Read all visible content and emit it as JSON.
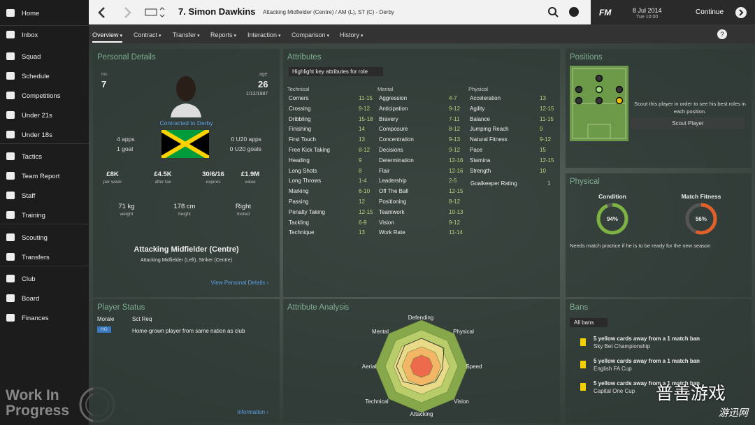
{
  "sidebar": {
    "items": [
      "Home",
      "Inbox",
      "Squad",
      "Schedule",
      "Competitions",
      "Under 21s",
      "Under 18s",
      "Tactics",
      "Team Report",
      "Staff",
      "Training",
      "Scouting",
      "Transfers",
      "Club",
      "Board",
      "Finances"
    ],
    "watermark": "Work In Progress"
  },
  "header": {
    "title": "7. Simon Dawkins",
    "subtitle": "Attacking Midfielder (Centre) / AM (L), ST (C) - Derby",
    "logo": "FM",
    "date": "8 Jul 2014",
    "time": "Tue 10:00",
    "continue": "Continue"
  },
  "tabs": [
    "Overview",
    "Contract",
    "Transfer",
    "Reports",
    "Interaction",
    "Comparison",
    "History"
  ],
  "personal": {
    "title": "Personal Details",
    "no_label": "no.",
    "no": "7",
    "age_label": "age",
    "age": "26",
    "dob": "1/12/1987",
    "contract": "Contracted to Derby",
    "stats": [
      {
        "value": "4 apps",
        "pos": "l"
      },
      {
        "value": "1 goal",
        "pos": "l"
      },
      {
        "value": "0 U20 apps",
        "pos": "r"
      },
      {
        "value": "0 U20 goals",
        "pos": "r"
      }
    ],
    "facts": [
      {
        "value": "£8K",
        "label": "per week"
      },
      {
        "value": "£4.5K",
        "label": "after tax"
      },
      {
        "value": "30/6/16",
        "label": "expires"
      },
      {
        "value": "£1.9M",
        "label": "value"
      }
    ],
    "body": [
      {
        "value": "71 kg",
        "label": "weight"
      },
      {
        "value": "178 cm",
        "label": "height"
      },
      {
        "value": "Right",
        "label": "footed"
      }
    ],
    "position": "Attacking Midfielder (Centre)",
    "other_positions": "Attacking Midfielder (Left), Striker (Centre)",
    "link": "View Personal Details ›"
  },
  "attributes": {
    "title": "Attributes",
    "highlight": "Highlight key attributes for role",
    "groups": [
      {
        "name": "Technical",
        "rows": [
          [
            "Corners",
            "11-15"
          ],
          [
            "Crossing",
            "9-12"
          ],
          [
            "Dribbling",
            "15-18"
          ],
          [
            "Finishing",
            "14"
          ],
          [
            "First Touch",
            "13"
          ],
          [
            "Free Kick Taking",
            "8-12"
          ],
          [
            "Heading",
            "9"
          ],
          [
            "Long Shots",
            "8"
          ],
          [
            "Long Throws",
            "1-4"
          ],
          [
            "Marking",
            "6-10"
          ],
          [
            "Passing",
            "12"
          ],
          [
            "Penalty Taking",
            "12-15"
          ],
          [
            "Tackling",
            "6-9"
          ],
          [
            "Technique",
            "13"
          ]
        ]
      },
      {
        "name": "Mental",
        "rows": [
          [
            "Aggression",
            "4-7"
          ],
          [
            "Anticipation",
            "9-12"
          ],
          [
            "Bravery",
            "7-11"
          ],
          [
            "Composure",
            "8-12"
          ],
          [
            "Concentration",
            "9-13"
          ],
          [
            "Decisions",
            "9-12"
          ],
          [
            "Determination",
            "12-16"
          ],
          [
            "Flair",
            "12-16"
          ],
          [
            "Leadership",
            "2-5"
          ],
          [
            "Off The Ball",
            "12-15"
          ],
          [
            "Positioning",
            "8-12"
          ],
          [
            "Teamwork",
            "10-13"
          ],
          [
            "Vision",
            "9-12"
          ],
          [
            "Work Rate",
            "11-14"
          ]
        ]
      },
      {
        "name": "Physical",
        "rows": [
          [
            "Acceleration",
            "13"
          ],
          [
            "Agility",
            "12-15"
          ],
          [
            "Balance",
            "11-15"
          ],
          [
            "Jumping Reach",
            "9"
          ],
          [
            "Natural Fitness",
            "9-12"
          ],
          [
            "Pace",
            "15"
          ],
          [
            "Stamina",
            "12-15"
          ],
          [
            "Strength",
            "10"
          ]
        ]
      }
    ],
    "gk_label": "Goalkeeper Rating",
    "gk_value": "1"
  },
  "positions": {
    "title": "Positions",
    "note": "Scout this player in order to see his best roles in each position.",
    "button": "Scout Player"
  },
  "physical": {
    "title": "Physical",
    "gauges": [
      {
        "name": "Condition",
        "value": 94,
        "label": "94%",
        "color": "#7cb342"
      },
      {
        "name": "Match Fitness",
        "value": 56,
        "label": "56%",
        "color": "#e0602a"
      }
    ],
    "note": "Needs match practice if he is to be ready for the new season"
  },
  "status": {
    "title": "Player Status",
    "morale": "Morale",
    "sct": "Sct Req",
    "badge": "HG",
    "text": "Home-grown player from same nation as club",
    "link": "Information ›"
  },
  "analysis": {
    "title": "Attribute Analysis",
    "axes": [
      "Defending",
      "Physical",
      "Speed",
      "Vision",
      "Attacking",
      "Technical",
      "Aerial",
      "Mental"
    ]
  },
  "bans": {
    "title": "Bans",
    "filter": "All bans",
    "items": [
      {
        "text": "5 yellow cards away from a 1 match ban",
        "comp": "Sky Bet Championship"
      },
      {
        "text": "5 yellow cards away from a 1 match ban",
        "comp": "English FA Cup"
      },
      {
        "text": "5 yellow cards away from a 1 match ban",
        "comp": "Capital One Cup"
      }
    ]
  },
  "overlay": {
    "brand": "普善游戏",
    "site": "游迅网"
  }
}
